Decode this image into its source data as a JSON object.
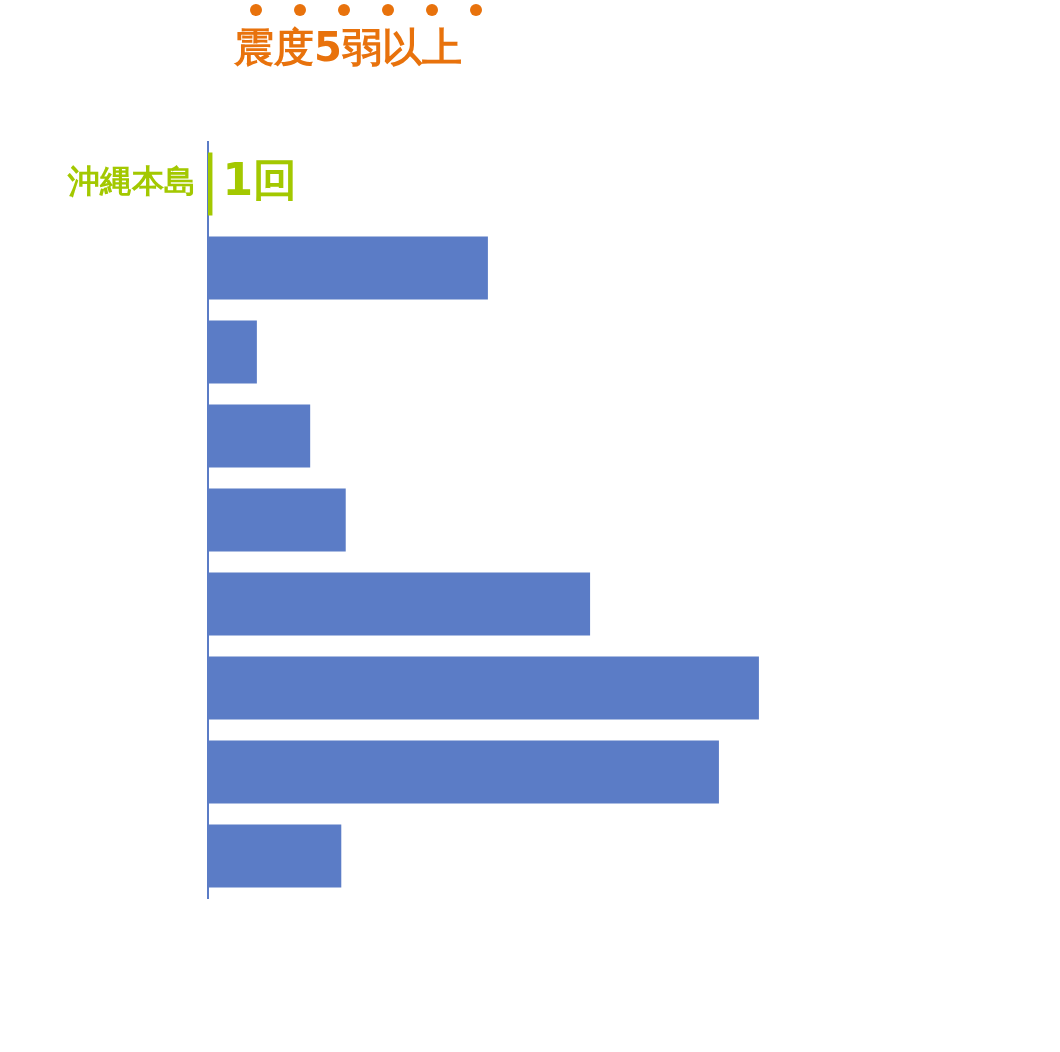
{
  "chart_data": {
    "type": "bar",
    "orientation": "horizontal",
    "title": "震度5弱以上",
    "categories": [
      "沖縄本島",
      null,
      null,
      null,
      null,
      null,
      null,
      null,
      null
    ],
    "values": [
      1,
      63,
      11,
      23,
      31,
      86,
      124,
      115,
      30
    ],
    "colors": [
      "#a3c800",
      "#5b7cc6",
      "#5b7cc6",
      "#5b7cc6",
      "#5b7cc6",
      "#5b7cc6",
      "#5b7cc6",
      "#5b7cc6",
      "#5b7cc6"
    ],
    "value_labels": [
      "1回",
      null,
      null,
      null,
      null,
      null,
      null,
      null,
      null
    ],
    "legend": false
  }
}
